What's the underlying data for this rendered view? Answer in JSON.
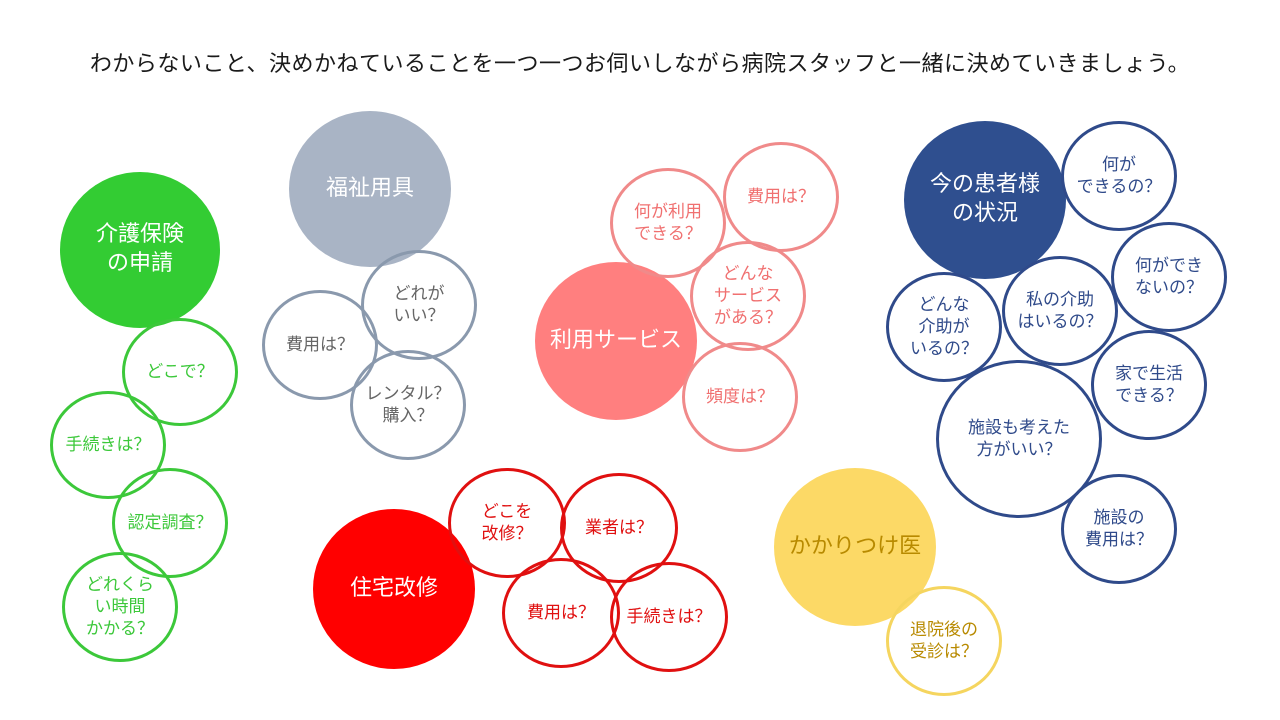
{
  "heading": "わからないこと、決めかねていることを一つ一つお伺いしながら病院スタッフと一緒に決めていきましょう。",
  "colors": {
    "green": "#33cc33",
    "gray": "#a9b4c5",
    "pink": "#ff7f7f",
    "navy": "#2f4f8f",
    "red": "#ff0000",
    "yellow": "#fcd966"
  },
  "clusters": {
    "kaigo": {
      "hub": "介護保険\nの申請",
      "items": [
        "どこで？",
        "手続きは？",
        "認定調査？",
        "どれくら\nい時間\nかかる？"
      ]
    },
    "fukushi": {
      "hub": "福祉用具",
      "items": [
        "どれが\nいい？",
        "費用は？",
        "レンタル？\n購入？"
      ]
    },
    "riyou": {
      "hub": "利用サービス",
      "items": [
        "何が利用\nできる？",
        "費用は？",
        "どんな\nサービス\nがある？",
        "頻度は？"
      ]
    },
    "jutaku": {
      "hub": "住宅改修",
      "items": [
        "どこを\n改修？",
        "業者は？",
        "費用は？",
        "手続きは？"
      ]
    },
    "kakaritsuke": {
      "hub": "かかりつけ医",
      "items": [
        "退院後の\n受診は？"
      ]
    },
    "kanja": {
      "hub": "今の患者様\nの状況",
      "items": [
        "何が\nできるの？",
        "何ができ\nないの？",
        "どんな\n介助が\nいるの？",
        "私の介助\nはいるの？",
        "家で生活\nできる？",
        "施設も考えた\n方がいい？",
        "施設の\n費用は？"
      ]
    }
  }
}
